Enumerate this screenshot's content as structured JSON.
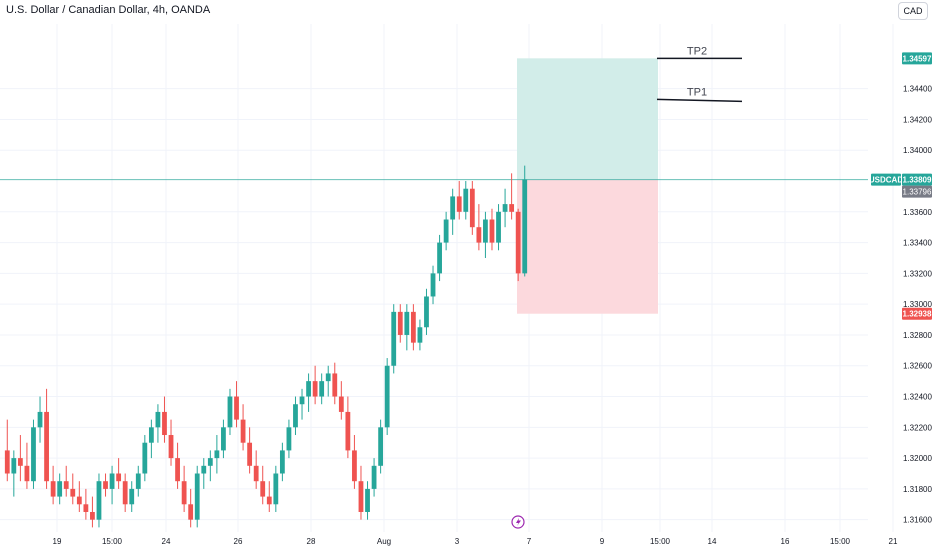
{
  "header": {
    "title": "U.S. Dollar / Canadian Dollar, 4h, OANDA",
    "currency_button": "CAD"
  },
  "colors": {
    "up": "#26a69a",
    "down": "#ef5350",
    "profit_zone": "#d2ede9",
    "loss_zone": "#fcd9dd",
    "price_line": "#26a69a",
    "grid": "#f0f3fa"
  },
  "chart_data": {
    "type": "candlestick",
    "title": "U.S. Dollar / Canadian Dollar, 4h, OANDA",
    "ylim": [
      1.3152,
      1.3482
    ],
    "y_ticks": [
      "1.31600",
      "1.31800",
      "1.32000",
      "1.32200",
      "1.32400",
      "1.32600",
      "1.32800",
      "1.33000",
      "1.33200",
      "1.33400",
      "1.33600",
      "1.34000",
      "1.34200",
      "1.34400"
    ],
    "x_ticks": [
      "19",
      "15:00",
      "24",
      "26",
      "28",
      "Aug",
      "3",
      "7",
      "9",
      "15:00",
      "14",
      "16",
      "15:00",
      "21"
    ],
    "price_labels": {
      "tp2_level": "1.34597",
      "current_symbol": "USDCAD",
      "current_price": "1.33809",
      "bid_price": "1.33796",
      "stop_level": "1.32938"
    },
    "position": {
      "entry": 1.33809,
      "take_profit": 1.34597,
      "stop_loss": 1.32938
    },
    "annotations": [
      {
        "label": "TP2",
        "price": 1.34597
      },
      {
        "label": "TP1",
        "price": 1.3433
      }
    ],
    "candles": [
      [
        1.3205,
        1.3225,
        1.3185,
        1.319
      ],
      [
        1.319,
        1.3205,
        1.3175,
        1.32
      ],
      [
        1.32,
        1.3215,
        1.3185,
        1.3195
      ],
      [
        1.3195,
        1.321,
        1.318,
        1.3185
      ],
      [
        1.3185,
        1.3225,
        1.318,
        1.322
      ],
      [
        1.322,
        1.324,
        1.321,
        1.323
      ],
      [
        1.323,
        1.3245,
        1.318,
        1.3185
      ],
      [
        1.3185,
        1.3195,
        1.317,
        1.3175
      ],
      [
        1.3175,
        1.319,
        1.317,
        1.3185
      ],
      [
        1.3185,
        1.3195,
        1.3175,
        1.318
      ],
      [
        1.318,
        1.319,
        1.317,
        1.3175
      ],
      [
        1.3175,
        1.3185,
        1.3165,
        1.317
      ],
      [
        1.317,
        1.318,
        1.316,
        1.3165
      ],
      [
        1.3165,
        1.3175,
        1.3155,
        1.316
      ],
      [
        1.316,
        1.319,
        1.3155,
        1.3185
      ],
      [
        1.3185,
        1.319,
        1.3175,
        1.318
      ],
      [
        1.318,
        1.3195,
        1.317,
        1.319
      ],
      [
        1.319,
        1.32,
        1.318,
        1.3185
      ],
      [
        1.3185,
        1.319,
        1.3165,
        1.317
      ],
      [
        1.317,
        1.3185,
        1.3165,
        1.318
      ],
      [
        1.318,
        1.3195,
        1.3175,
        1.319
      ],
      [
        1.319,
        1.3215,
        1.3185,
        1.321
      ],
      [
        1.321,
        1.3225,
        1.32,
        1.322
      ],
      [
        1.322,
        1.3235,
        1.321,
        1.323
      ],
      [
        1.323,
        1.324,
        1.321,
        1.3215
      ],
      [
        1.3215,
        1.3225,
        1.3195,
        1.32
      ],
      [
        1.32,
        1.321,
        1.318,
        1.3185
      ],
      [
        1.3185,
        1.3195,
        1.3165,
        1.317
      ],
      [
        1.317,
        1.318,
        1.3155,
        1.316
      ],
      [
        1.316,
        1.3195,
        1.3155,
        1.319
      ],
      [
        1.319,
        1.32,
        1.318,
        1.3195
      ],
      [
        1.3195,
        1.3205,
        1.3185,
        1.32
      ],
      [
        1.32,
        1.3215,
        1.319,
        1.3205
      ],
      [
        1.3205,
        1.3225,
        1.32,
        1.322
      ],
      [
        1.322,
        1.3245,
        1.3215,
        1.324
      ],
      [
        1.324,
        1.325,
        1.322,
        1.3225
      ],
      [
        1.3225,
        1.3235,
        1.3205,
        1.321
      ],
      [
        1.321,
        1.322,
        1.319,
        1.3195
      ],
      [
        1.3195,
        1.3205,
        1.318,
        1.3185
      ],
      [
        1.3185,
        1.3195,
        1.317,
        1.3175
      ],
      [
        1.3175,
        1.3185,
        1.3165,
        1.317
      ],
      [
        1.317,
        1.3195,
        1.3165,
        1.319
      ],
      [
        1.319,
        1.321,
        1.3185,
        1.3205
      ],
      [
        1.3205,
        1.3225,
        1.32,
        1.322
      ],
      [
        1.322,
        1.324,
        1.3215,
        1.3235
      ],
      [
        1.3235,
        1.3245,
        1.3225,
        1.324
      ],
      [
        1.324,
        1.3255,
        1.323,
        1.325
      ],
      [
        1.325,
        1.326,
        1.3235,
        1.324
      ],
      [
        1.324,
        1.3255,
        1.3235,
        1.325
      ],
      [
        1.325,
        1.326,
        1.324,
        1.3255
      ],
      [
        1.3255,
        1.3262,
        1.3235,
        1.324
      ],
      [
        1.324,
        1.325,
        1.3225,
        1.323
      ],
      [
        1.323,
        1.324,
        1.32,
        1.3205
      ],
      [
        1.3205,
        1.3215,
        1.318,
        1.3185
      ],
      [
        1.3185,
        1.3195,
        1.316,
        1.3165
      ],
      [
        1.3165,
        1.3185,
        1.316,
        1.318
      ],
      [
        1.318,
        1.32,
        1.3175,
        1.3195
      ],
      [
        1.3195,
        1.3225,
        1.319,
        1.322
      ],
      [
        1.322,
        1.3265,
        1.3215,
        1.326
      ],
      [
        1.326,
        1.33,
        1.3255,
        1.3295
      ],
      [
        1.3295,
        1.33,
        1.3275,
        1.328
      ],
      [
        1.328,
        1.33,
        1.327,
        1.3295
      ],
      [
        1.3295,
        1.33,
        1.327,
        1.3275
      ],
      [
        1.3275,
        1.329,
        1.327,
        1.3285
      ],
      [
        1.3285,
        1.331,
        1.328,
        1.3305
      ],
      [
        1.3305,
        1.3325,
        1.33,
        1.332
      ],
      [
        1.332,
        1.3345,
        1.3315,
        1.334
      ],
      [
        1.334,
        1.336,
        1.3335,
        1.3355
      ],
      [
        1.3355,
        1.3375,
        1.3345,
        1.337
      ],
      [
        1.337,
        1.338,
        1.3355,
        1.336
      ],
      [
        1.336,
        1.338,
        1.3355,
        1.3375
      ],
      [
        1.3375,
        1.338,
        1.3345,
        1.335
      ],
      [
        1.335,
        1.3365,
        1.3335,
        1.334
      ],
      [
        1.334,
        1.336,
        1.333,
        1.3355
      ],
      [
        1.3355,
        1.3362,
        1.3335,
        1.334
      ],
      [
        1.334,
        1.3365,
        1.3335,
        1.336
      ],
      [
        1.336,
        1.3375,
        1.335,
        1.3365
      ],
      [
        1.3365,
        1.3385,
        1.3355,
        1.336
      ],
      [
        1.336,
        1.3362,
        1.3315,
        1.332
      ],
      [
        1.332,
        1.339,
        1.3318,
        1.3381
      ]
    ]
  }
}
